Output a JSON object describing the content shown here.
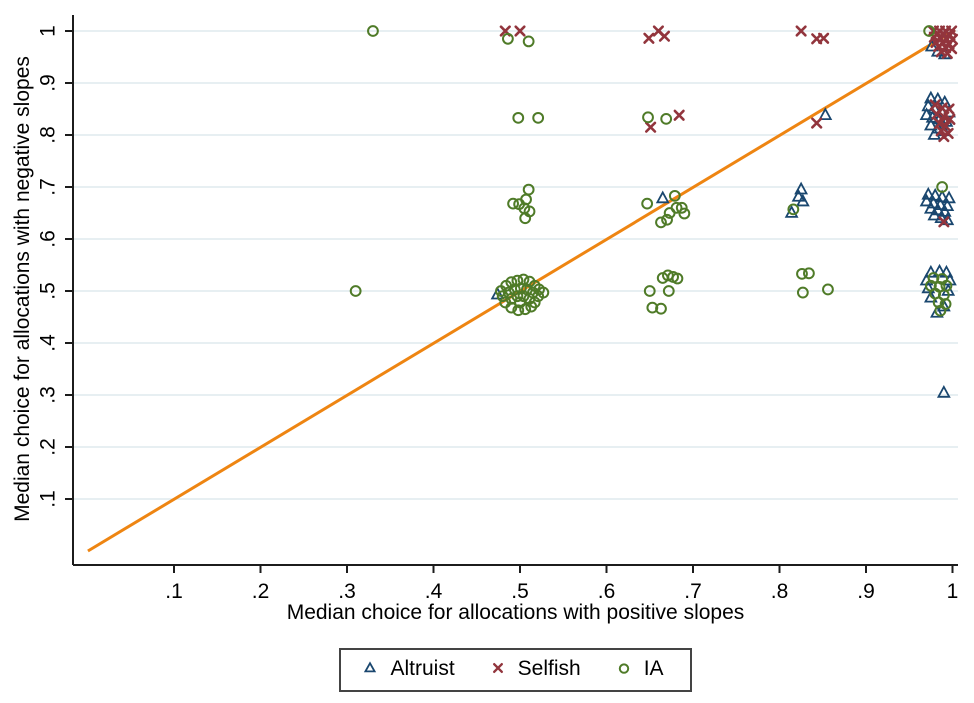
{
  "figure": {
    "title": ""
  },
  "legend": {
    "items": [
      {
        "label": "Altruist",
        "marker": "triangle-icon"
      },
      {
        "label": "Selfish",
        "marker": "x-icon"
      },
      {
        "label": "IA",
        "marker": "circle-icon"
      }
    ]
  },
  "chart_data": {
    "type": "scatter",
    "title": "",
    "xlabel": "Median choice for allocations with positive slopes",
    "ylabel": "Median choice for allocations with negative slopes",
    "xlim": [
      -0.017,
      1.006
    ],
    "ylim": [
      -0.027,
      1.031
    ],
    "grid": "horizontal",
    "legend_position": "bottom",
    "x_ticks": {
      "values": [
        0.1,
        0.2,
        0.3,
        0.4,
        0.5,
        0.6,
        0.7,
        0.8,
        0.9,
        1.0
      ],
      "labels": [
        ".1",
        ".2",
        ".3",
        ".4",
        ".5",
        ".6",
        ".7",
        ".8",
        ".9",
        "1"
      ]
    },
    "y_ticks": {
      "values": [
        0.1,
        0.2,
        0.3,
        0.4,
        0.5,
        0.6,
        0.7,
        0.8,
        0.9,
        1.0
      ],
      "labels": [
        ".1",
        ".2",
        ".3",
        ".4",
        ".5",
        ".6",
        ".7",
        ".8",
        ".9",
        "1"
      ]
    },
    "colors": {
      "grid": "#dfeaee",
      "axis": "#1c1c1c",
      "reference_line": "#ee8512",
      "altruist": "#1a476f",
      "selfish": "#92353d",
      "ia": "#4f7b28"
    },
    "reference_line": {
      "x1": 0.0005,
      "y1": 0.0,
      "x2": 1.003,
      "y2": 1.002
    },
    "series": [
      {
        "name": "Altruist",
        "marker": "triangle",
        "color": "#1a476f",
        "points": [
          [
            0.99,
            0.304
          ],
          [
            0.853,
            0.838
          ],
          [
            0.825,
            0.695
          ],
          [
            0.822,
            0.681
          ],
          [
            0.827,
            0.672
          ],
          [
            0.814,
            0.65
          ],
          [
            0.665,
            0.678
          ],
          [
            0.474,
            0.493
          ],
          [
            0.976,
            0.97
          ],
          [
            0.983,
            0.96
          ],
          [
            0.991,
            0.955
          ],
          [
            0.975,
            0.87
          ],
          [
            0.983,
            0.868
          ],
          [
            0.991,
            0.862
          ],
          [
            0.972,
            0.855
          ],
          [
            0.979,
            0.85
          ],
          [
            0.987,
            0.845
          ],
          [
            0.996,
            0.843
          ],
          [
            0.97,
            0.838
          ],
          [
            0.977,
            0.833
          ],
          [
            0.985,
            0.83
          ],
          [
            0.993,
            0.825
          ],
          [
            0.975,
            0.818
          ],
          [
            0.983,
            0.812
          ],
          [
            0.99,
            0.807
          ],
          [
            0.979,
            0.8
          ],
          [
            0.972,
            0.685
          ],
          [
            0.98,
            0.683
          ],
          [
            0.988,
            0.68
          ],
          [
            0.996,
            0.678
          ],
          [
            0.97,
            0.672
          ],
          [
            0.978,
            0.668
          ],
          [
            0.986,
            0.665
          ],
          [
            0.994,
            0.663
          ],
          [
            0.975,
            0.658
          ],
          [
            0.983,
            0.655
          ],
          [
            0.991,
            0.652
          ],
          [
            0.979,
            0.645
          ],
          [
            0.987,
            0.64
          ],
          [
            0.994,
            0.636
          ],
          [
            0.975,
            0.535
          ],
          [
            0.985,
            0.537
          ],
          [
            0.993,
            0.535
          ],
          [
            0.97,
            0.52
          ],
          [
            0.997,
            0.52
          ],
          [
            0.972,
            0.505
          ],
          [
            0.995,
            0.5
          ],
          [
            0.975,
            0.487
          ],
          [
            0.99,
            0.47
          ],
          [
            0.982,
            0.458
          ]
        ]
      },
      {
        "name": "Selfish",
        "marker": "x",
        "color": "#92353d",
        "points": [
          [
            0.483,
            1.0
          ],
          [
            0.5,
            1.0
          ],
          [
            0.649,
            0.986
          ],
          [
            0.66,
            1.0
          ],
          [
            0.667,
            0.99
          ],
          [
            0.825,
            1.0
          ],
          [
            0.843,
            0.985
          ],
          [
            0.851,
            0.986
          ],
          [
            0.651,
            0.815
          ],
          [
            0.684,
            0.838
          ],
          [
            0.843,
            0.823
          ],
          [
            0.99,
            0.633
          ],
          [
            0.978,
            1.0
          ],
          [
            0.985,
            1.0
          ],
          [
            0.992,
            1.0
          ],
          [
            0.999,
            1.0
          ],
          [
            0.983,
            0.995
          ],
          [
            0.99,
            0.994
          ],
          [
            0.997,
            0.992
          ],
          [
            0.979,
            0.988
          ],
          [
            0.986,
            0.986
          ],
          [
            0.993,
            0.985
          ],
          [
            1.0,
            0.984
          ],
          [
            0.981,
            0.978
          ],
          [
            0.989,
            0.977
          ],
          [
            0.996,
            0.975
          ],
          [
            0.984,
            0.97
          ],
          [
            0.992,
            0.968
          ],
          [
            0.999,
            0.966
          ],
          [
            0.987,
            0.96
          ],
          [
            0.994,
            0.957
          ],
          [
            0.98,
            0.858
          ],
          [
            0.988,
            0.852
          ],
          [
            0.996,
            0.85
          ],
          [
            0.982,
            0.84
          ],
          [
            0.99,
            0.835
          ],
          [
            0.997,
            0.83
          ],
          [
            0.985,
            0.822
          ],
          [
            0.992,
            0.817
          ],
          [
            0.987,
            0.808
          ],
          [
            0.995,
            0.803
          ],
          [
            0.99,
            0.797
          ]
        ]
      },
      {
        "name": "IA",
        "marker": "circle",
        "color": "#4f7b28",
        "points": [
          [
            0.33,
            1.0
          ],
          [
            0.31,
            0.5
          ],
          [
            0.486,
            0.985
          ],
          [
            0.51,
            0.98
          ],
          [
            0.973,
            1.0
          ],
          [
            0.498,
            0.833
          ],
          [
            0.521,
            0.833
          ],
          [
            0.648,
            0.834
          ],
          [
            0.669,
            0.831
          ],
          [
            0.816,
            0.657
          ],
          [
            0.988,
            0.7
          ],
          [
            0.51,
            0.695
          ],
          [
            0.492,
            0.668
          ],
          [
            0.499,
            0.667
          ],
          [
            0.507,
            0.676
          ],
          [
            0.505,
            0.659
          ],
          [
            0.511,
            0.653
          ],
          [
            0.506,
            0.64
          ],
          [
            0.647,
            0.668
          ],
          [
            0.679,
            0.683
          ],
          [
            0.681,
            0.66
          ],
          [
            0.673,
            0.65
          ],
          [
            0.687,
            0.66
          ],
          [
            0.69,
            0.649
          ],
          [
            0.663,
            0.632
          ],
          [
            0.67,
            0.637
          ],
          [
            0.478,
            0.5
          ],
          [
            0.484,
            0.51
          ],
          [
            0.49,
            0.517
          ],
          [
            0.497,
            0.52
          ],
          [
            0.504,
            0.522
          ],
          [
            0.511,
            0.518
          ],
          [
            0.517,
            0.51
          ],
          [
            0.522,
            0.503
          ],
          [
            0.48,
            0.49
          ],
          [
            0.487,
            0.497
          ],
          [
            0.494,
            0.503
          ],
          [
            0.501,
            0.505
          ],
          [
            0.508,
            0.503
          ],
          [
            0.515,
            0.497
          ],
          [
            0.521,
            0.49
          ],
          [
            0.483,
            0.478
          ],
          [
            0.49,
            0.485
          ],
          [
            0.497,
            0.49
          ],
          [
            0.504,
            0.49
          ],
          [
            0.511,
            0.485
          ],
          [
            0.517,
            0.478
          ],
          [
            0.49,
            0.468
          ],
          [
            0.498,
            0.463
          ],
          [
            0.506,
            0.465
          ],
          [
            0.513,
            0.47
          ],
          [
            0.5,
            0.478
          ],
          [
            0.527,
            0.497
          ],
          [
            0.665,
            0.525
          ],
          [
            0.671,
            0.53
          ],
          [
            0.677,
            0.527
          ],
          [
            0.682,
            0.524
          ],
          [
            0.65,
            0.5
          ],
          [
            0.672,
            0.5
          ],
          [
            0.653,
            0.468
          ],
          [
            0.663,
            0.466
          ],
          [
            0.826,
            0.533
          ],
          [
            0.834,
            0.534
          ],
          [
            0.827,
            0.497
          ],
          [
            0.856,
            0.503
          ],
          [
            0.978,
            0.525
          ],
          [
            0.988,
            0.523
          ],
          [
            0.975,
            0.51
          ],
          [
            0.985,
            0.508
          ],
          [
            0.993,
            0.51
          ],
          [
            0.98,
            0.495
          ],
          [
            0.99,
            0.492
          ],
          [
            0.984,
            0.478
          ],
          [
            0.992,
            0.475
          ],
          [
            0.986,
            0.462
          ]
        ]
      }
    ]
  }
}
